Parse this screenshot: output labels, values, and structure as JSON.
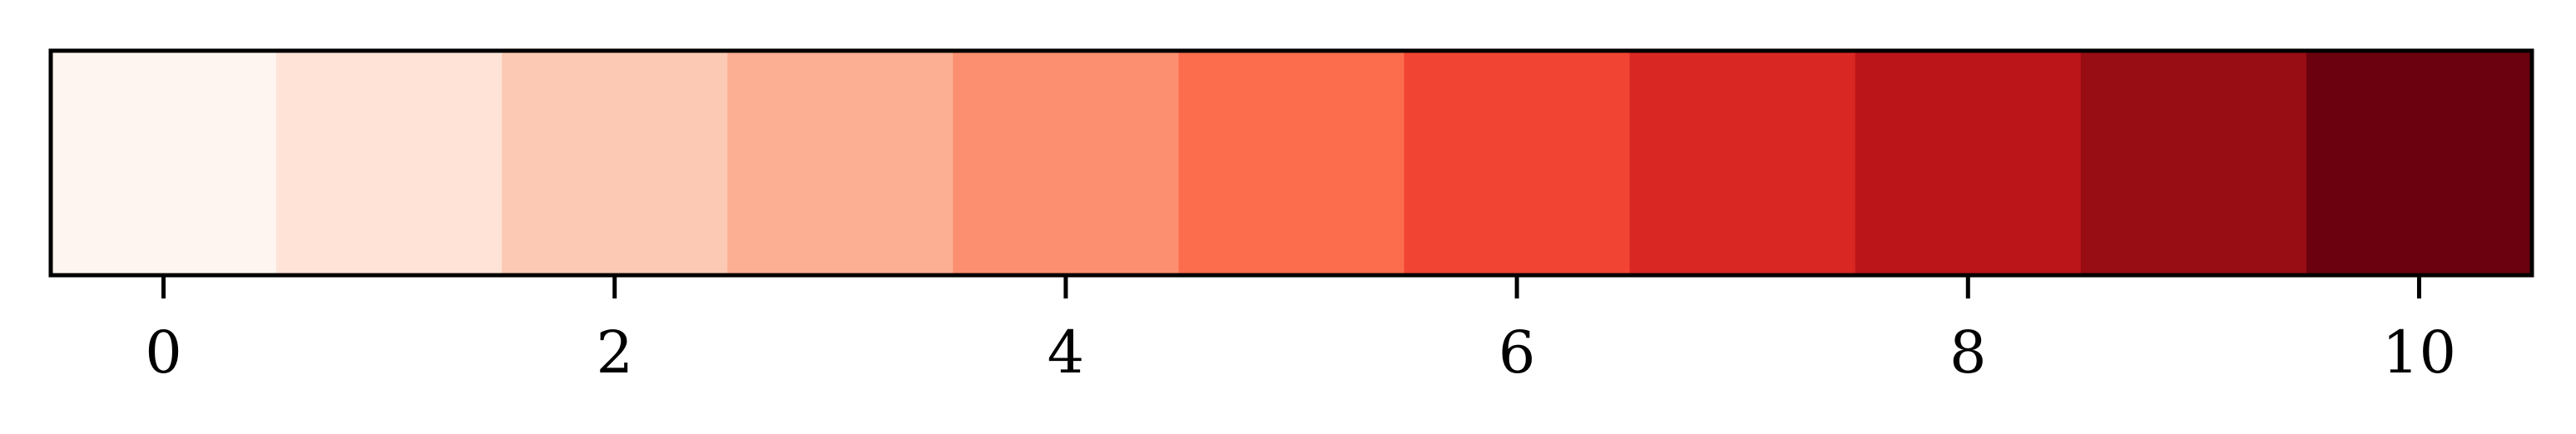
{
  "chart_data": {
    "type": "heatmap",
    "title": "",
    "xlabel": "",
    "ylabel": "",
    "orientation": "horizontal",
    "colormap": "Reds",
    "values": [
      0,
      1,
      2,
      3,
      4,
      5,
      6,
      7,
      8,
      9,
      10
    ],
    "colors": [
      "#fff5f0",
      "#fee3d6",
      "#fcc9b4",
      "#fcaf93",
      "#fc8f6f",
      "#fb6d4d",
      "#f14432",
      "#d92723",
      "#bb151a",
      "#980c13",
      "#6b010e"
    ],
    "xlim": [
      -0.5,
      10.5
    ],
    "ticks": [
      0,
      2,
      4,
      6,
      8,
      10
    ],
    "tick_labels": [
      "0",
      "2",
      "4",
      "6",
      "8",
      "10"
    ],
    "grid": false,
    "legend": "none"
  }
}
